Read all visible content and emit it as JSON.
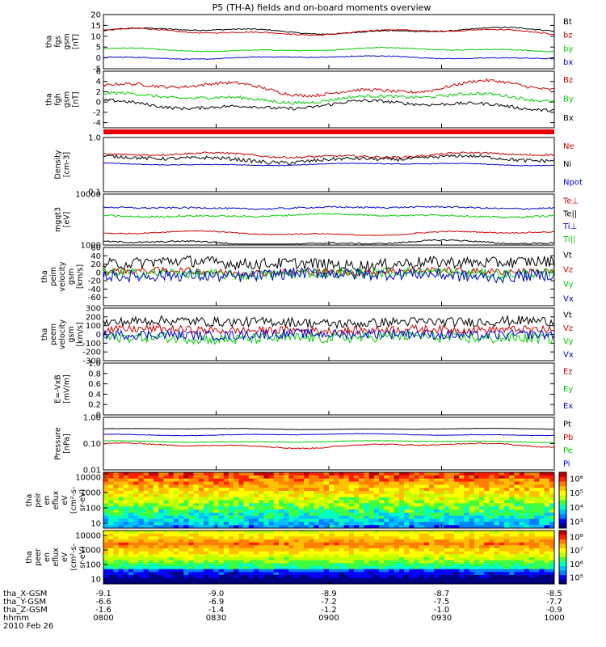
{
  "title": "P5 (TH-A) fields and on-board moments overview",
  "date": "2010 Feb 26",
  "chart_data": [
    {
      "type": "line",
      "id": "fgs",
      "ylabel": [
        "tha",
        "fgs",
        "gsm",
        "[nT]"
      ],
      "ylim": [
        -5,
        20
      ],
      "ticks": [
        {
          "v": 20,
          "t": "20"
        },
        {
          "v": 15,
          "t": "15"
        },
        {
          "v": 10,
          "t": "10"
        },
        {
          "v": 5,
          "t": "5"
        },
        {
          "v": 0,
          "t": "0"
        },
        {
          "v": -5,
          "t": "-5"
        }
      ],
      "series": [
        {
          "name": "Bt",
          "color": "#000000",
          "base": 12.5,
          "amp": 1.6,
          "noise": 0.25
        },
        {
          "name": "bz",
          "color": "#cc0000",
          "base": 12.0,
          "amp": 1.6,
          "noise": 0.25
        },
        {
          "name": "by",
          "color": "#00cc00",
          "base": 3.8,
          "amp": 1.0,
          "noise": 0.2
        },
        {
          "name": "bx",
          "color": "#0000cc",
          "base": 0.2,
          "amp": 0.8,
          "noise": 0.2
        }
      ]
    },
    {
      "type": "line",
      "id": "fgh",
      "ylabel": [
        "tha",
        "fgh",
        "gsm",
        "[nT]"
      ],
      "ylim": [
        -5,
        6
      ],
      "ticks": [
        {
          "v": 6,
          "t": "6"
        },
        {
          "v": 4,
          "t": "4"
        },
        {
          "v": 2,
          "t": "2"
        },
        {
          "v": 0,
          "t": "0"
        },
        {
          "v": -2,
          "t": "-2"
        },
        {
          "v": -4,
          "t": "-4"
        }
      ],
      "series": [
        {
          "name": "Bz",
          "color": "#cc0000",
          "base": 2.6,
          "amp": 1.6,
          "noise": 0.3
        },
        {
          "name": "By",
          "color": "#00cc00",
          "base": 0.8,
          "amp": 1.0,
          "noise": 0.3
        },
        {
          "name": "Bx",
          "color": "#000000",
          "base": -0.6,
          "amp": 1.0,
          "noise": 0.3
        }
      ]
    },
    {
      "type": "line",
      "id": "density",
      "log": true,
      "ylabel": [
        "Density",
        "[cm-3]"
      ],
      "ylim": [
        0.1,
        1.0
      ],
      "ticks": [
        {
          "v": 1.0,
          "t": "1.0"
        },
        {
          "v": 0.1,
          "t": "0.1"
        }
      ],
      "series": [
        {
          "name": "Ne",
          "color": "#cc0000",
          "base": 0.47,
          "amp": 0.06,
          "noise": 0.02
        },
        {
          "name": "Ni",
          "color": "#000000",
          "base": 0.4,
          "amp": 0.06,
          "noise": 0.03
        },
        {
          "name": "Npot",
          "color": "#0000cc",
          "base": 0.32,
          "amp": 0.02,
          "noise": 0.005
        }
      ]
    },
    {
      "type": "line",
      "id": "mgt",
      "log": true,
      "ylabel": [
        "mgqt3",
        "[eV]"
      ],
      "ylim": [
        1000,
        10000
      ],
      "ticks": [
        {
          "v": 10000,
          "t": "10000"
        },
        {
          "v": 1000,
          "t": "1000"
        }
      ],
      "series": [
        {
          "name": "Te⊥",
          "color": "#cc0000",
          "base": 1700,
          "amp": 200,
          "noise": 40
        },
        {
          "name": "Te||",
          "color": "#000000",
          "base": 1100,
          "amp": 150,
          "noise": 40
        },
        {
          "name": "Ti⊥",
          "color": "#0000cc",
          "base": 5400,
          "amp": 300,
          "noise": 200
        },
        {
          "name": "Ti||",
          "color": "#00cc00",
          "base": 3800,
          "amp": 300,
          "noise": 150
        }
      ]
    },
    {
      "type": "line",
      "id": "peim",
      "ylabel": [
        "tha",
        "peim",
        "velocity",
        "gsm",
        "[km/s]"
      ],
      "ylim": [
        -80,
        60
      ],
      "ticks": [
        {
          "v": 60,
          "t": "60"
        },
        {
          "v": 40,
          "t": "40"
        },
        {
          "v": 20,
          "t": "20"
        },
        {
          "v": 0,
          "t": "0"
        },
        {
          "v": -20,
          "t": "-20"
        },
        {
          "v": -40,
          "t": "-40"
        },
        {
          "v": -60,
          "t": "-60"
        }
      ],
      "series": [
        {
          "name": "Vt",
          "color": "#000000",
          "base": 22,
          "amp": 6,
          "noise": 14
        },
        {
          "name": "Vz",
          "color": "#cc0000",
          "base": 2,
          "amp": 4,
          "noise": 8
        },
        {
          "name": "Vy",
          "color": "#00cc00",
          "base": -2,
          "amp": 4,
          "noise": 12
        },
        {
          "name": "Vx",
          "color": "#0000cc",
          "base": -6,
          "amp": 6,
          "noise": 14
        }
      ]
    },
    {
      "type": "line",
      "id": "peem",
      "ylabel": [
        "tha",
        "peem",
        "velocity",
        "gsm",
        "[km/s]"
      ],
      "ylim": [
        -300,
        300
      ],
      "ticks": [
        {
          "v": 300,
          "t": "300"
        },
        {
          "v": 200,
          "t": "200"
        },
        {
          "v": 100,
          "t": "100"
        },
        {
          "v": 0,
          "t": "0"
        },
        {
          "v": -100,
          "t": "-100"
        },
        {
          "v": -200,
          "t": "-200"
        },
        {
          "v": -300,
          "t": "-300"
        }
      ],
      "series": [
        {
          "name": "Vt",
          "color": "#000000",
          "base": 140,
          "amp": 20,
          "noise": 55
        },
        {
          "name": "Vz",
          "color": "#cc0000",
          "base": 50,
          "amp": 15,
          "noise": 45
        },
        {
          "name": "Vy",
          "color": "#00cc00",
          "base": -40,
          "amp": 20,
          "noise": 60
        },
        {
          "name": "Vx",
          "color": "#0000cc",
          "base": 0,
          "amp": 15,
          "noise": 55
        }
      ]
    },
    {
      "type": "line",
      "id": "efield",
      "ylabel": [
        "E=-VxB",
        "[mV/m]"
      ],
      "ylim": [
        0,
        1.0
      ],
      "ticks": [
        {
          "v": 1.0,
          "t": "1.0"
        },
        {
          "v": 0.8,
          "t": "0.8"
        },
        {
          "v": 0.6,
          "t": "0.6"
        },
        {
          "v": 0.4,
          "t": "0.4"
        },
        {
          "v": 0.2,
          "t": "0.2"
        },
        {
          "v": 0,
          "t": "0"
        }
      ],
      "series": [
        {
          "name": "Ez",
          "color": "#cc0000"
        },
        {
          "name": "Ey",
          "color": "#00cc00"
        },
        {
          "name": "Ex",
          "color": "#0000cc"
        }
      ]
    },
    {
      "type": "line",
      "id": "pressure",
      "log": true,
      "ylabel": [
        "Pressure",
        "[nPa]"
      ],
      "ylim": [
        0.01,
        1.0
      ],
      "ticks": [
        {
          "v": 1.0,
          "t": "1.00"
        },
        {
          "v": 0.1,
          "t": "0.10"
        },
        {
          "v": 0.01,
          "t": "0.01"
        }
      ],
      "series": [
        {
          "name": "Pt",
          "color": "#000000",
          "base": 0.36,
          "amp": 0.02,
          "noise": 0.005
        },
        {
          "name": "Pb",
          "color": "#cc0000",
          "base": 0.085,
          "amp": 0.02,
          "noise": 0.004
        },
        {
          "name": "Pe",
          "color": "#00cc00",
          "base": 0.12,
          "amp": 0.01,
          "noise": 0.002
        },
        {
          "name": "Pi",
          "color": "#0000cc",
          "base": 0.22,
          "amp": 0.02,
          "noise": 0.004
        }
      ]
    },
    {
      "type": "heatmap",
      "id": "peir",
      "ylabel": [
        "tha",
        "peir",
        "en",
        "eflux",
        "eV",
        "(cm²-s-",
        "sr-eV)"
      ],
      "ylim": [
        10,
        10000
      ],
      "yticks": [
        "10000",
        "1000",
        "100",
        "10"
      ],
      "colorbar": {
        "labels": [
          "10⁶",
          "10⁵",
          "10⁴",
          "10³"
        ]
      }
    },
    {
      "type": "heatmap",
      "id": "peer",
      "ylabel": [
        "tha",
        "peer",
        "en",
        "eflux",
        "eV",
        "(cm²-s-",
        "sr-eV)"
      ],
      "ylim": [
        10,
        10000
      ],
      "yticks": [
        "10000",
        "1000",
        "100",
        "10"
      ],
      "colorbar": {
        "labels": [
          "10⁸",
          "10⁷",
          "10⁶",
          "10⁵"
        ]
      }
    }
  ],
  "xaxis": {
    "rows": [
      {
        "label": "tha_X-GSM",
        "values": [
          "-9.1",
          "-9.0",
          "-8.9",
          "-8.7",
          "-8.5"
        ]
      },
      {
        "label": "tha_Y-GSM",
        "values": [
          "-6.6",
          "-6.9",
          "-7.2",
          "-7.5",
          "-7.7"
        ]
      },
      {
        "label": "tha_Z-GSM",
        "values": [
          "-1.6",
          "-1.4",
          "-1.2",
          "-1.0",
          "-0.9"
        ]
      },
      {
        "label": "hhmm",
        "values": [
          "0800",
          "0830",
          "0900",
          "0930",
          "1000"
        ]
      }
    ]
  }
}
